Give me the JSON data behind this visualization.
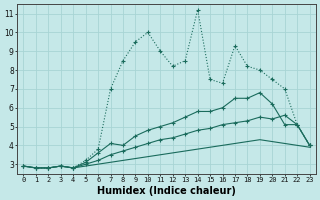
{
  "x": [
    0,
    1,
    2,
    3,
    4,
    5,
    6,
    7,
    8,
    9,
    10,
    11,
    12,
    13,
    14,
    15,
    16,
    17,
    18,
    19,
    20,
    21,
    22,
    23
  ],
  "line1_y": [
    2.9,
    2.8,
    2.8,
    2.9,
    2.8,
    3.2,
    3.8,
    7.0,
    8.5,
    9.5,
    10.0,
    9.0,
    8.2,
    8.5,
    11.2,
    7.5,
    7.3,
    9.3,
    8.2,
    8.0,
    7.5,
    7.0,
    5.1,
    4.0
  ],
  "line2_y": [
    2.9,
    2.8,
    2.8,
    2.9,
    2.8,
    3.1,
    3.6,
    4.1,
    4.0,
    4.5,
    4.8,
    5.0,
    5.2,
    5.5,
    5.8,
    5.8,
    6.0,
    6.5,
    6.5,
    6.8,
    6.2,
    5.1,
    5.1,
    4.0
  ],
  "line3_y": [
    2.9,
    2.8,
    2.8,
    2.9,
    2.8,
    3.0,
    3.2,
    3.5,
    3.7,
    3.9,
    4.1,
    4.3,
    4.4,
    4.6,
    4.8,
    4.9,
    5.1,
    5.2,
    5.3,
    5.5,
    5.4,
    5.6,
    5.1,
    4.0
  ],
  "line4_y": [
    2.9,
    2.8,
    2.8,
    2.9,
    2.8,
    2.9,
    3.0,
    3.1,
    3.2,
    3.3,
    3.4,
    3.5,
    3.6,
    3.7,
    3.8,
    3.9,
    4.0,
    4.1,
    4.2,
    4.3,
    4.2,
    4.1,
    4.0,
    3.9
  ],
  "color": "#1a6b5c",
  "bg_color": "#c5e8e8",
  "grid_color": "#a8d4d4",
  "xlabel": "Humidex (Indice chaleur)",
  "yticks": [
    3,
    4,
    5,
    6,
    7,
    8,
    9,
    10,
    11
  ],
  "xlim": [
    -0.5,
    23.5
  ],
  "ylim": [
    2.5,
    11.5
  ]
}
